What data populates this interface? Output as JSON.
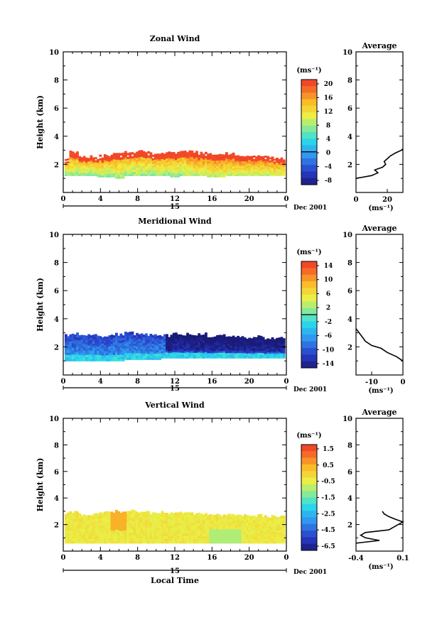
{
  "chart_data": [
    {
      "type": "heatmap",
      "panel": "zonal",
      "title": "Zonal Wind",
      "ylabel": "Height (km)",
      "unit_label": "(ms⁻¹)",
      "xlim": [
        0,
        24
      ],
      "ylim": [
        0,
        10
      ],
      "x_ticks": [
        "0",
        "4",
        "8",
        "12",
        "16",
        "20",
        "0"
      ],
      "y_ticks": [
        "2",
        "4",
        "6",
        "8",
        "10"
      ],
      "date_marker": "15",
      "date_label": "Dec 2001",
      "colorbar_ticks": [
        "-8",
        "-4",
        "0",
        "4",
        "8",
        "12",
        "16",
        "20"
      ],
      "colorbar_range": [
        -10,
        22
      ],
      "layer_top_km": [
        2.5,
        2.9,
        2.6,
        2.6,
        2.6,
        2.7,
        2.8,
        2.9,
        3.0,
        2.9,
        2.8,
        2.8,
        2.8,
        2.9,
        2.9,
        2.8,
        2.7,
        2.7,
        2.8,
        2.7,
        2.6,
        2.6,
        2.6,
        2.5,
        2.4
      ],
      "layer_bottom_km": [
        1.2,
        1.2,
        1.2,
        1.2,
        1.1,
        1.1,
        1.0,
        1.2,
        1.2,
        1.2,
        1.2,
        1.2,
        1.1,
        1.2,
        1.2,
        1.2,
        1.1,
        1.1,
        1.2,
        1.2,
        1.2,
        1.2,
        1.2,
        1.2,
        1.2
      ],
      "profile": {
        "title": "Average",
        "xlim": [
          0,
          30
        ],
        "x_ticks": [
          "0",
          "20"
        ],
        "xlabel": "(ms⁻¹)",
        "y_ticks": [
          "2",
          "4",
          "6",
          "8",
          "10"
        ],
        "heights_km": [
          1.0,
          1.2,
          1.4,
          1.6,
          1.8,
          2.0,
          2.2,
          2.4,
          2.6,
          2.8,
          3.0,
          3.1
        ],
        "values": [
          0,
          10,
          14,
          12,
          17,
          19,
          18,
          20,
          22,
          25,
          29,
          30
        ]
      }
    },
    {
      "type": "heatmap",
      "panel": "meridional",
      "title": "Meridional Wind",
      "ylabel": "Height (km)",
      "unit_label": "(ms⁻¹)",
      "xlim": [
        0,
        24
      ],
      "ylim": [
        0,
        10
      ],
      "x_ticks": [
        "0",
        "4",
        "8",
        "12",
        "16",
        "20",
        "0"
      ],
      "y_ticks": [
        "2",
        "4",
        "6",
        "8",
        "10"
      ],
      "date_marker": "15",
      "date_label": "Dec 2001",
      "colorbar_ticks": [
        "-14",
        "-10",
        "-6",
        "-2",
        "2",
        "6",
        "10",
        "14"
      ],
      "colorbar_range": [
        -16,
        16
      ],
      "layer_top_km": [
        2.8,
        2.9,
        2.9,
        2.9,
        2.8,
        2.8,
        2.9,
        3.0,
        2.9,
        2.9,
        2.9,
        2.8,
        2.9,
        2.9,
        2.9,
        2.9,
        2.8,
        2.8,
        2.8,
        2.8,
        2.7,
        2.7,
        2.6,
        2.6,
        2.6
      ],
      "layer_bottom_km": [
        1.0,
        1.0,
        1.0,
        1.0,
        1.0,
        1.0,
        1.0,
        1.1,
        1.1,
        1.1,
        1.1,
        1.2,
        1.2,
        1.2,
        1.2,
        1.2,
        1.2,
        1.2,
        1.2,
        1.2,
        1.2,
        1.2,
        1.2,
        1.2,
        1.2
      ],
      "profile": {
        "title": "Average",
        "xlim": [
          -15,
          0
        ],
        "x_ticks": [
          "-10",
          "0"
        ],
        "xlabel": "(ms⁻¹)",
        "y_ticks": [
          "2",
          "4",
          "6",
          "8",
          "10"
        ],
        "heights_km": [
          1.0,
          1.3,
          1.6,
          1.9,
          2.1,
          2.4,
          2.7,
          3.0,
          3.3
        ],
        "values": [
          0,
          -2,
          -5,
          -7,
          -10,
          -12,
          -13,
          -14,
          -15
        ]
      }
    },
    {
      "type": "heatmap",
      "panel": "vertical",
      "title": "Vertical Wind",
      "ylabel": "Height (km)",
      "xlabel": "Local Time",
      "unit_label": "(ms⁻¹)",
      "xlim": [
        0,
        24
      ],
      "ylim": [
        0,
        10
      ],
      "x_ticks": [
        "0",
        "4",
        "8",
        "12",
        "16",
        "20",
        "0"
      ],
      "y_ticks": [
        "2",
        "4",
        "6",
        "8",
        "10"
      ],
      "date_marker": "15",
      "date_label": "Dec 2001",
      "colorbar_ticks": [
        "-6.5",
        "-4.5",
        "-2.5",
        "-1.5",
        "-0.5",
        "0.5",
        "1.5"
      ],
      "colorbar_range": [
        -7.0,
        2.0
      ],
      "layer_top_km": [
        2.9,
        2.9,
        2.8,
        2.8,
        2.9,
        2.9,
        3.0,
        3.1,
        3.0,
        2.9,
        2.9,
        2.9,
        2.9,
        2.9,
        2.8,
        2.8,
        2.7,
        2.7,
        2.7,
        2.7,
        2.7,
        2.7,
        2.6,
        2.6,
        2.6
      ],
      "layer_bottom_km": [
        0.6,
        0.6,
        0.6,
        0.6,
        0.6,
        0.6,
        0.6,
        0.6,
        0.6,
        0.6,
        0.6,
        0.6,
        0.6,
        0.6,
        0.6,
        0.6,
        0.6,
        0.6,
        0.6,
        0.6,
        0.6,
        0.6,
        0.6,
        0.6,
        0.6
      ],
      "profile": {
        "title": "Average",
        "xlim": [
          -0.4,
          0.1
        ],
        "x_ticks": [
          "-0.4",
          "0.1"
        ],
        "xlabel": "(ms⁻¹)",
        "y_ticks": [
          "2",
          "4",
          "6",
          "8",
          "10"
        ],
        "heights_km": [
          0.6,
          0.8,
          1.0,
          1.2,
          1.4,
          1.6,
          1.8,
          2.0,
          2.2,
          2.4,
          2.6,
          2.8,
          3.0
        ],
        "values": [
          -0.4,
          -0.15,
          -0.3,
          -0.35,
          -0.3,
          -0.05,
          0.0,
          0.05,
          0.1,
          0.02,
          -0.05,
          -0.1,
          -0.12
        ]
      }
    }
  ]
}
